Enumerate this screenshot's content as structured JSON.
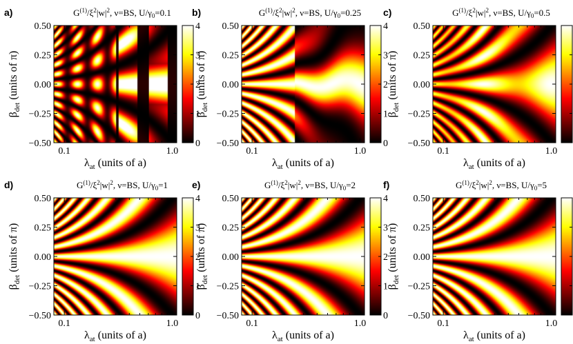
{
  "chart_data": {
    "type": "heatmap",
    "layout": "2 rows x 3 columns",
    "shared": {
      "xlabel_main": "λ",
      "xlabel_sub": "at",
      "xlabel_rest": " (units of a)",
      "ylabel_main": "β",
      "ylabel_sub": "det",
      "ylabel_rest": "  (units of π)",
      "xscale": "log",
      "xlim": [
        0.08,
        1.1
      ],
      "ylim": [
        -0.5,
        0.5
      ],
      "xticks": [
        {
          "value": 0.1,
          "label": "0.1"
        },
        {
          "value": 1.0,
          "label": "1.0"
        }
      ],
      "yticks": [
        {
          "value": -0.5,
          "label": "−0.50"
        },
        {
          "value": -0.25,
          "label": "−0.25"
        },
        {
          "value": 0.0,
          "label": "0.00"
        },
        {
          "value": 0.25,
          "label": "0.25"
        },
        {
          "value": 0.5,
          "label": "0.50"
        }
      ],
      "colorbar": {
        "colormap": "hot",
        "range": [
          0,
          4
        ],
        "ticks": [
          {
            "value": 0,
            "label": "0"
          },
          {
            "value": 1,
            "label": "1"
          },
          {
            "value": 2,
            "label": "2"
          },
          {
            "value": 3,
            "label": "3"
          },
          {
            "value": 4,
            "label": "4"
          }
        ]
      },
      "title_parts": {
        "g": "G",
        "g_sup": "(1)",
        "slash": "/ξ",
        "xi_sup": "2",
        "w": "|w|",
        "w_sup": "2",
        "nu": ", ν=BS, U/γ",
        "gamma_sub": "0",
        "eq": "="
      }
    },
    "panels": [
      {
        "label": "a)",
        "U_over_gamma0": "0.1",
        "regime": "strongly interrupted fringes, dark vertical bands"
      },
      {
        "label": "b)",
        "U_over_gamma0": "0.25",
        "regime": "partially merged fringes"
      },
      {
        "label": "c)",
        "U_over_gamma0": "0.5",
        "regime": "near-regular fringes"
      },
      {
        "label": "d)",
        "U_over_gamma0": "1",
        "regime": "regular interference fan"
      },
      {
        "label": "e)",
        "U_over_gamma0": "2",
        "regime": "regular interference fan"
      },
      {
        "label": "f)",
        "U_over_gamma0": "5",
        "regime": "regular interference fan"
      }
    ]
  }
}
